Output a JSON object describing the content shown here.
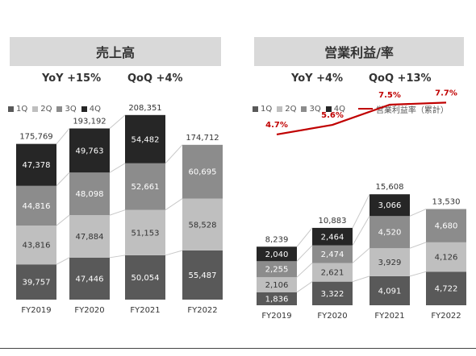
{
  "colors": {
    "q1": "#595959",
    "q2": "#bfbfbf",
    "q3": "#8c8c8c",
    "q4": "#262626",
    "header_bg": "#d9d9d9",
    "line": "#c00000",
    "connector": "#c8c8c8"
  },
  "sales": {
    "title": "売上高",
    "yoy": "YoY +15%",
    "qoq": "QoQ +4%"
  },
  "profit": {
    "title": "営業利益/率",
    "yoy": "YoY +4%",
    "qoq": "QoQ +13%"
  },
  "legend": {
    "q1": "1Q",
    "q2": "2Q",
    "q3": "3Q",
    "q4": "4Q",
    "line": "営業利益率（累計）"
  },
  "chart_data": [
    {
      "type": "bar",
      "stacked": true,
      "title": "売上高",
      "categories": [
        "FY2019",
        "FY2020",
        "FY2021",
        "FY2022"
      ],
      "series": [
        {
          "name": "1Q",
          "values": [
            39757,
            47446,
            50054,
            55487
          ]
        },
        {
          "name": "2Q",
          "values": [
            43816,
            47884,
            51153,
            58528
          ]
        },
        {
          "name": "3Q",
          "values": [
            44816,
            48098,
            52661,
            60695
          ]
        },
        {
          "name": "4Q",
          "values": [
            47378,
            49763,
            54482,
            null
          ]
        }
      ],
      "totals": [
        175769,
        193192,
        208351,
        174712
      ],
      "labels": {
        "1Q": [
          "39,757",
          "47,446",
          "50,054",
          "55,487"
        ],
        "2Q": [
          "43,816",
          "47,884",
          "51,153",
          "58,528"
        ],
        "3Q": [
          "44,816",
          "48,098",
          "52,661",
          "60,695"
        ],
        "4Q": [
          "47,378",
          "49,763",
          "54,482",
          ""
        ],
        "totals": [
          "175,769",
          "193,192",
          "208,351",
          "174,712"
        ]
      },
      "legend_position": "top-left"
    },
    {
      "type": "bar",
      "stacked": true,
      "title": "営業利益/率",
      "categories": [
        "FY2019",
        "FY2020",
        "FY2021",
        "FY2022"
      ],
      "series": [
        {
          "name": "1Q",
          "values": [
            1836,
            3322,
            4091,
            4722
          ]
        },
        {
          "name": "2Q",
          "values": [
            2106,
            2621,
            3929,
            4126
          ]
        },
        {
          "name": "3Q",
          "values": [
            2255,
            2474,
            4520,
            4680
          ]
        },
        {
          "name": "4Q",
          "values": [
            2040,
            2464,
            3066,
            null
          ]
        }
      ],
      "totals": [
        8239,
        10883,
        15608,
        13530
      ],
      "line": {
        "name": "営業利益率（累計）",
        "values": [
          4.7,
          5.6,
          7.5,
          7.7
        ],
        "unit": "%"
      },
      "labels": {
        "1Q": [
          "1,836",
          "3,322",
          "4,091",
          "4,722"
        ],
        "2Q": [
          "2,106",
          "2,621",
          "3,929",
          "4,126"
        ],
        "3Q": [
          "2,255",
          "2,474",
          "4,520",
          "4,680"
        ],
        "4Q": [
          "2,040",
          "2,464",
          "3,066",
          ""
        ],
        "totals": [
          "8,239",
          "10,883",
          "15,608",
          "13,530"
        ],
        "line": [
          "4.7%",
          "5.6%",
          "7.5%",
          "7.7%"
        ]
      },
      "legend_position": "top-left"
    }
  ]
}
